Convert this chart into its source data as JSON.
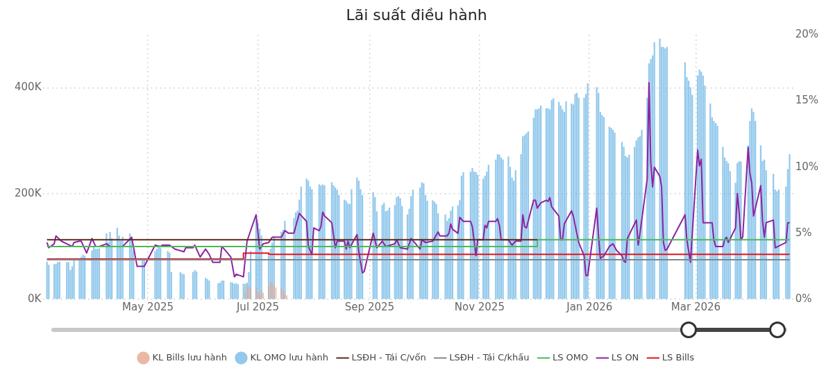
{
  "chart_data": {
    "type": "bar",
    "title": "Lãi suất điều hành",
    "xlim": [
      "2025-03-04",
      "2026-04-24"
    ],
    "xticks": [
      {
        "value": "2025-05-01",
        "label": "May 2025"
      },
      {
        "value": "2025-07-01",
        "label": "Jul 2025"
      },
      {
        "value": "2025-09-01",
        "label": "Sep 2025"
      },
      {
        "value": "2025-11-01",
        "label": "Nov 2025"
      },
      {
        "value": "2026-01-01",
        "label": "Jan 2026"
      },
      {
        "value": "2026-03-01",
        "label": "Mar 2026"
      }
    ],
    "ylim": [
      0,
      500
    ],
    "yticks": [
      {
        "value": 0,
        "label": "0K"
      },
      {
        "value": 200,
        "label": "200K"
      },
      {
        "value": 400,
        "label": "400K"
      }
    ],
    "y2lim": [
      0,
      20
    ],
    "y2ticks": [
      {
        "value": 0,
        "label": "0%"
      },
      {
        "value": 5,
        "label": "5%"
      },
      {
        "value": 10,
        "label": "10%"
      },
      {
        "value": 15,
        "label": "15%"
      },
      {
        "value": 20,
        "label": "20%"
      }
    ],
    "grid": true,
    "legend": "bottom",
    "series": [
      {
        "name": "KL Bills lưu hành",
        "color": "#e3a085",
        "x": [
          "2025-06-24",
          "2025-06-25",
          "2025-06-26",
          "2025-06-27",
          "2025-06-30",
          "2025-07-01",
          "2025-07-02",
          "2025-07-03",
          "2025-07-04",
          "2025-07-07",
          "2025-07-08",
          "2025-07-09",
          "2025-07-10",
          "2025-07-11",
          "2025-07-14",
          "2025-07-15",
          "2025-07-16",
          "2025-07-17"
        ],
        "values": [
          12,
          24,
          24,
          20,
          22,
          14,
          9,
          16,
          12,
          24,
          33,
          31,
          27,
          22,
          22,
          16,
          11,
          7
        ]
      },
      {
        "name": "KL OMO lưu hành",
        "color": "#6fb7e6",
        "x": [
          "2025-03-06",
          "2025-03-07",
          "2025-03-10",
          "2025-03-11",
          "2025-03-12",
          "2025-03-13",
          "2025-03-17",
          "2025-03-18",
          "2025-03-19",
          "2025-03-20",
          "2025-03-21",
          "2025-03-24",
          "2025-03-25",
          "2025-03-26",
          "2025-03-27",
          "2025-03-31",
          "2025-04-01",
          "2025-04-02",
          "2025-04-03",
          "2025-04-04",
          "2025-04-08",
          "2025-04-09",
          "2025-04-10",
          "2025-04-11",
          "2025-04-14",
          "2025-04-15",
          "2025-04-16",
          "2025-04-17",
          "2025-04-21",
          "2025-04-22",
          "2025-04-23",
          "2025-04-28",
          "2025-04-29",
          "2025-05-05",
          "2025-05-06",
          "2025-05-07",
          "2025-05-08",
          "2025-05-12",
          "2025-05-13",
          "2025-05-14",
          "2025-05-19",
          "2025-05-20",
          "2025-05-21",
          "2025-05-26",
          "2025-05-27",
          "2025-05-28",
          "2025-06-02",
          "2025-06-03",
          "2025-06-04",
          "2025-06-09",
          "2025-06-10",
          "2025-06-11",
          "2025-06-12",
          "2025-06-16",
          "2025-06-17",
          "2025-06-18",
          "2025-06-19",
          "2025-06-20",
          "2025-06-23",
          "2025-06-24",
          "2025-06-25",
          "2025-06-26",
          "2025-06-27",
          "2025-06-30",
          "2025-07-01",
          "2025-07-02",
          "2025-07-03",
          "2025-07-07",
          "2025-07-08",
          "2025-07-09",
          "2025-07-10",
          "2025-07-14",
          "2025-07-15",
          "2025-07-16",
          "2025-07-21",
          "2025-07-22",
          "2025-07-23",
          "2025-07-24",
          "2025-07-25",
          "2025-07-28",
          "2025-07-29",
          "2025-07-30",
          "2025-07-31",
          "2025-08-04",
          "2025-08-05",
          "2025-08-06",
          "2025-08-07",
          "2025-08-11",
          "2025-08-12",
          "2025-08-13",
          "2025-08-14",
          "2025-08-15",
          "2025-08-18",
          "2025-08-19",
          "2025-08-20",
          "2025-08-21",
          "2025-08-22",
          "2025-08-25",
          "2025-08-26",
          "2025-08-27",
          "2025-08-28",
          "2025-09-03",
          "2025-09-04",
          "2025-09-05",
          "2025-09-08",
          "2025-09-09",
          "2025-09-10",
          "2025-09-11",
          "2025-09-12",
          "2025-09-15",
          "2025-09-16",
          "2025-09-17",
          "2025-09-18",
          "2025-09-19",
          "2025-09-22",
          "2025-09-23",
          "2025-09-24",
          "2025-09-25",
          "2025-09-29",
          "2025-09-30",
          "2025-10-01",
          "2025-10-02",
          "2025-10-03",
          "2025-10-06",
          "2025-10-07",
          "2025-10-08",
          "2025-10-09",
          "2025-10-13",
          "2025-10-14",
          "2025-10-15",
          "2025-10-16",
          "2025-10-17",
          "2025-10-20",
          "2025-10-21",
          "2025-10-22",
          "2025-10-23",
          "2025-10-27",
          "2025-10-28",
          "2025-10-29",
          "2025-10-30",
          "2025-10-31",
          "2025-11-03",
          "2025-11-04",
          "2025-11-05",
          "2025-11-06",
          "2025-11-10",
          "2025-11-11",
          "2025-11-12",
          "2025-11-13",
          "2025-11-14",
          "2025-11-17",
          "2025-11-18",
          "2025-11-19",
          "2025-11-20",
          "2025-11-21",
          "2025-11-24",
          "2025-11-25",
          "2025-11-26",
          "2025-11-27",
          "2025-11-28",
          "2025-12-01",
          "2025-12-02",
          "2025-12-03",
          "2025-12-04",
          "2025-12-05",
          "2025-12-08",
          "2025-12-09",
          "2025-12-10",
          "2025-12-11",
          "2025-12-12",
          "2025-12-15",
          "2025-12-16",
          "2025-12-17",
          "2025-12-18",
          "2025-12-19",
          "2025-12-22",
          "2025-12-23",
          "2025-12-24",
          "2025-12-25",
          "2025-12-26",
          "2025-12-29",
          "2025-12-30",
          "2025-12-31",
          "2026-01-05",
          "2026-01-06",
          "2026-01-07",
          "2026-01-08",
          "2026-01-09",
          "2026-01-12",
          "2026-01-13",
          "2026-01-14",
          "2026-01-15",
          "2026-01-19",
          "2026-01-20",
          "2026-01-21",
          "2026-01-22",
          "2026-01-23",
          "2026-01-26",
          "2026-01-27",
          "2026-01-28",
          "2026-01-29",
          "2026-01-30",
          "2026-02-02",
          "2026-02-03",
          "2026-02-04",
          "2026-02-05",
          "2026-02-06",
          "2026-02-09",
          "2026-02-10",
          "2026-02-11",
          "2026-02-12",
          "2026-02-13",
          "2026-02-23",
          "2026-02-24",
          "2026-02-25",
          "2026-02-26",
          "2026-02-27",
          "2026-03-02",
          "2026-03-03",
          "2026-03-04",
          "2026-03-05",
          "2026-03-06",
          "2026-03-09",
          "2026-03-10",
          "2026-03-11",
          "2026-03-12",
          "2026-03-13",
          "2026-03-16",
          "2026-03-17",
          "2026-03-18",
          "2026-03-19",
          "2026-03-20",
          "2026-03-23",
          "2026-03-24",
          "2026-03-25",
          "2026-03-26",
          "2026-03-30",
          "2026-03-31",
          "2026-04-01",
          "2026-04-02",
          "2026-04-03",
          "2026-04-06",
          "2026-04-07",
          "2026-04-08",
          "2026-04-09",
          "2026-04-13",
          "2026-04-14",
          "2026-04-15",
          "2026-04-16",
          "2026-04-20",
          "2026-04-21",
          "2026-04-22"
        ],
        "values": [
          71,
          65,
          66,
          67,
          70,
          71,
          70,
          70,
          55,
          62,
          74,
          74,
          80,
          84,
          82,
          92,
          99,
          95,
          95,
          96,
          124,
          108,
          127,
          115,
          135,
          120,
          111,
          118,
          124,
          115,
          92,
          73,
          73,
          91,
          95,
          98,
          97,
          91,
          88,
          51,
          51,
          48,
          47,
          51,
          55,
          52,
          40,
          38,
          35,
          30,
          31,
          35,
          35,
          32,
          31,
          29,
          30,
          28,
          29,
          29,
          31,
          51,
          91,
          150,
          145,
          133,
          120,
          82,
          95,
          107,
          117,
          127,
          131,
          148,
          153,
          164,
          167,
          188,
          213,
          228,
          224,
          213,
          208,
          217,
          215,
          217,
          215,
          221,
          215,
          211,
          207,
          197,
          188,
          186,
          181,
          180,
          208,
          230,
          224,
          208,
          197,
          202,
          193,
          166,
          178,
          182,
          166,
          168,
          173,
          178,
          193,
          195,
          191,
          176,
          160,
          171,
          195,
          207,
          211,
          221,
          219,
          197,
          186,
          187,
          184,
          180,
          162,
          160,
          148,
          153,
          167,
          175,
          177,
          187,
          233,
          240,
          241,
          248,
          241,
          240,
          235,
          228,
          233,
          241,
          254,
          264,
          274,
          273,
          268,
          264,
          270,
          250,
          230,
          224,
          244,
          274,
          308,
          310,
          314,
          317,
          343,
          359,
          359,
          361,
          366,
          361,
          361,
          359,
          377,
          380,
          373,
          366,
          359,
          354,
          374,
          370,
          368,
          388,
          390,
          381,
          381,
          388,
          408,
          401,
          390,
          354,
          348,
          344,
          326,
          324,
          320,
          315,
          297,
          288,
          271,
          268,
          273,
          288,
          300,
          306,
          308,
          320,
          381,
          446,
          454,
          461,
          486,
          493,
          477,
          477,
          474,
          477,
          448,
          420,
          413,
          401,
          386,
          423,
          434,
          430,
          423,
          404,
          370,
          344,
          337,
          333,
          328,
          288,
          268,
          261,
          257,
          242,
          220,
          257,
          261,
          260,
          291,
          337,
          361,
          354,
          337,
          291,
          261,
          264,
          244,
          237,
          207,
          204,
          207,
          213,
          246,
          274
        ]
      },
      {
        "name": "LSĐH - Tái C/vốn",
        "type": "step",
        "axis": "y2",
        "color": "#5c2a14",
        "x": [
          "2025-03-06",
          "2025-12-03"
        ],
        "values": [
          4.5,
          4.5
        ]
      },
      {
        "name": "LSĐH - Tái C/khấu",
        "type": "step",
        "axis": "y2",
        "color": "#858585",
        "x": [
          "2025-03-06",
          "2026-04-22"
        ],
        "values": [
          3.0,
          3.0
        ]
      },
      {
        "name": "LS OMO",
        "type": "step",
        "axis": "y2",
        "color": "#4cb85a",
        "x": [
          "2025-03-06",
          "2025-12-03",
          "2026-04-22"
        ],
        "values": [
          4.0,
          4.5,
          4.5
        ]
      },
      {
        "name": "LS ON",
        "type": "line",
        "axis": "y2",
        "color": "#8e22a0",
        "x": [
          "2025-03-06",
          "2025-03-07",
          "2025-03-10",
          "2025-03-11",
          "2025-03-14",
          "2025-03-17",
          "2025-03-20",
          "2025-03-21",
          "2025-03-24",
          "2025-03-25",
          "2025-03-28",
          "2025-03-31",
          "2025-04-02",
          "2025-04-04",
          "2025-04-08",
          "2025-04-10",
          "2025-04-17",
          "2025-04-22",
          "2025-04-25",
          "2025-04-29",
          "2025-05-05",
          "2025-05-08",
          "2025-05-09",
          "2025-05-13",
          "2025-05-16",
          "2025-05-21",
          "2025-05-22",
          "2025-05-26",
          "2025-05-27",
          "2025-05-30",
          "2025-06-02",
          "2025-06-04",
          "2025-06-06",
          "2025-06-10",
          "2025-06-11",
          "2025-06-13",
          "2025-06-16",
          "2025-06-18",
          "2025-06-19",
          "2025-06-23",
          "2025-06-25",
          "2025-06-30",
          "2025-07-02",
          "2025-07-04",
          "2025-07-07",
          "2025-07-09",
          "2025-07-14",
          "2025-07-16",
          "2025-07-18",
          "2025-07-21",
          "2025-07-24",
          "2025-07-28",
          "2025-07-29",
          "2025-07-31",
          "2025-08-01",
          "2025-08-04",
          "2025-08-05",
          "2025-08-06",
          "2025-08-07",
          "2025-08-11",
          "2025-08-13",
          "2025-08-14",
          "2025-08-18",
          "2025-08-19",
          "2025-08-20",
          "2025-08-21",
          "2025-08-25",
          "2025-08-26",
          "2025-08-28",
          "2025-08-29",
          "2025-09-03",
          "2025-09-05",
          "2025-09-08",
          "2025-09-10",
          "2025-09-15",
          "2025-09-16",
          "2025-09-18",
          "2025-09-22",
          "2025-09-24",
          "2025-09-29",
          "2025-09-30",
          "2025-10-02",
          "2025-10-06",
          "2025-10-09",
          "2025-10-10",
          "2025-10-14",
          "2025-10-15",
          "2025-10-16",
          "2025-10-17",
          "2025-10-20",
          "2025-10-21",
          "2025-10-23",
          "2025-10-27",
          "2025-10-28",
          "2025-10-30",
          "2025-10-31",
          "2025-11-03",
          "2025-11-04",
          "2025-11-05",
          "2025-11-06",
          "2025-11-10",
          "2025-11-11",
          "2025-11-12",
          "2025-11-13",
          "2025-11-17",
          "2025-11-19",
          "2025-11-21",
          "2025-11-24",
          "2025-11-25",
          "2025-11-26",
          "2025-11-27",
          "2025-12-01",
          "2025-12-02",
          "2025-12-03",
          "2025-12-05",
          "2025-12-08",
          "2025-12-09",
          "2025-12-10",
          "2025-12-11",
          "2025-12-15",
          "2025-12-16",
          "2025-12-17",
          "2025-12-18",
          "2025-12-22",
          "2025-12-23",
          "2025-12-26",
          "2025-12-29",
          "2025-12-30",
          "2025-12-31",
          "2026-01-05",
          "2026-01-06",
          "2026-01-07",
          "2026-01-09",
          "2026-01-12",
          "2026-01-14",
          "2026-01-16",
          "2026-01-19",
          "2026-01-20",
          "2026-01-21",
          "2026-01-22",
          "2026-01-27",
          "2026-01-28",
          "2026-01-29",
          "2026-02-02",
          "2026-02-03",
          "2026-02-04",
          "2026-02-05",
          "2026-02-06",
          "2026-02-09",
          "2026-02-10",
          "2026-02-11",
          "2026-02-12",
          "2026-02-13",
          "2026-02-23",
          "2026-02-24",
          "2026-02-26",
          "2026-03-02",
          "2026-03-03",
          "2026-03-04",
          "2026-03-05",
          "2026-03-10",
          "2026-03-11",
          "2026-03-12",
          "2026-03-16",
          "2026-03-17",
          "2026-03-18",
          "2026-03-19",
          "2026-03-23",
          "2026-03-24",
          "2026-03-25",
          "2026-03-26",
          "2026-03-27",
          "2026-03-30",
          "2026-03-31",
          "2026-04-01",
          "2026-04-02",
          "2026-04-06",
          "2026-04-07",
          "2026-04-08",
          "2026-04-09",
          "2026-04-13",
          "2026-04-14",
          "2026-04-20",
          "2026-04-21",
          "2026-04-22"
        ],
        "values": [
          4.3,
          3.9,
          4.2,
          4.8,
          4.4,
          4.2,
          4.0,
          4.3,
          4.4,
          4.4,
          3.5,
          4.6,
          4.0,
          4.0,
          4.2,
          4.0,
          4.0,
          4.7,
          2.5,
          2.5,
          4.1,
          4.0,
          4.1,
          4.1,
          3.8,
          3.6,
          3.9,
          3.9,
          4.1,
          3.2,
          3.8,
          3.4,
          2.8,
          2.8,
          4.0,
          3.7,
          3.2,
          1.7,
          1.9,
          1.7,
          4.4,
          6.4,
          3.8,
          4.2,
          4.3,
          4.7,
          4.7,
          5.2,
          5.0,
          5.0,
          6.5,
          5.9,
          4.0,
          3.4,
          5.4,
          5.2,
          5.5,
          6.6,
          6.3,
          5.8,
          3.9,
          4.4,
          4.4,
          3.8,
          4.4,
          3.9,
          4.9,
          3.6,
          2.0,
          2.1,
          5.0,
          3.9,
          4.4,
          4.0,
          4.2,
          4.5,
          3.9,
          3.8,
          4.6,
          3.8,
          4.5,
          4.3,
          4.4,
          5.1,
          4.8,
          4.8,
          5.0,
          5.7,
          5.3,
          5.0,
          6.2,
          5.9,
          5.9,
          5.5,
          3.3,
          4.5,
          4.5,
          5.6,
          5.4,
          5.9,
          5.9,
          6.1,
          5.6,
          4.5,
          4.5,
          4.1,
          4.4,
          4.4,
          6.4,
          5.5,
          5.4,
          7.5,
          7.5,
          6.9,
          7.3,
          7.5,
          7.4,
          7.7,
          7.0,
          6.3,
          4.5,
          4.5,
          5.7,
          6.7,
          6.3,
          4.3,
          3.3,
          1.8,
          1.8,
          6.9,
          4.8,
          3.1,
          3.3,
          4.0,
          4.2,
          3.7,
          3.3,
          2.9,
          2.8,
          4.6,
          6.0,
          4.1,
          5.0,
          9.1,
          16.4,
          10.3,
          8.5,
          10.0,
          9.3,
          8.5,
          4.3,
          3.7,
          3.8,
          6.4,
          4.5,
          2.8,
          11.3,
          10.1,
          10.6,
          5.8,
          5.8,
          4.5,
          4.0,
          4.0,
          4.5,
          4.7,
          4.3,
          5.4,
          8.0,
          6.6,
          4.5,
          4.7,
          11.5,
          9.5,
          8.8,
          6.3,
          8.6,
          5.9,
          4.7,
          5.8,
          6.0,
          3.9,
          4.3,
          5.8,
          5.8
        ]
      },
      {
        "name": "LS Bills",
        "type": "step",
        "axis": "y2",
        "color": "#e8121b",
        "x": [
          "2025-03-06",
          "2025-06-23",
          "2025-07-07",
          "2026-04-22"
        ],
        "values": [
          3.05,
          3.5,
          3.4,
          3.4
        ]
      }
    ]
  }
}
